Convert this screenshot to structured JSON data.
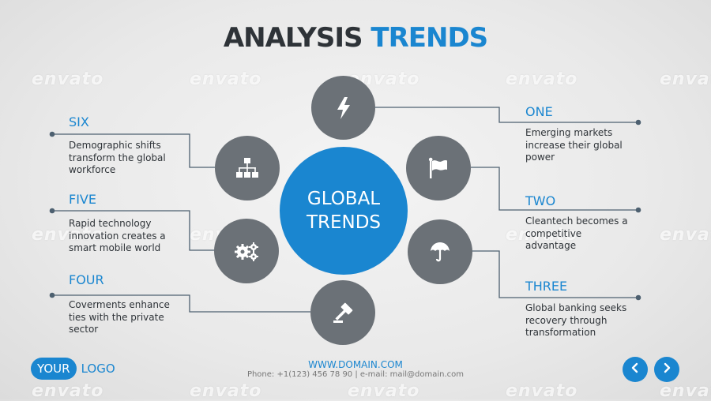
{
  "watermark": {
    "text": "envato"
  },
  "title": {
    "part1": "ANALYSIS ",
    "part2": "TRENDS"
  },
  "center": {
    "line1": "GLOBAL",
    "line2": "TRENDS"
  },
  "trends": {
    "one": {
      "label": "ONE",
      "text": "Emerging markets\nincrease their global\npower"
    },
    "two": {
      "label": "TWO",
      "text": "Cleantech becomes a\ncompetitive\nadvantage"
    },
    "three": {
      "label": "THREE",
      "text": "Global banking seeks\nrecovery through\ntransformation"
    },
    "four": {
      "label": "FOUR",
      "text": "Coverments enhance\nties with the private\nsector"
    },
    "five": {
      "label": "FIVE",
      "text": "Rapid technology\ninnovation creates a\nsmart mobile world"
    },
    "six": {
      "label": "SIX",
      "text": "Demographic shifts\ntransform the global\nworkforce"
    }
  },
  "footer": {
    "url": "WWW.DOMAIN.COM",
    "contact": "Phone: +1(123) 456 78 90 | e-mail: mail@domain.com"
  },
  "logo": {
    "your": "YOUR",
    "logo": "LOGO"
  },
  "icons": {
    "one": "lightning-icon",
    "two": "flag-icon",
    "three": "umbrella-icon",
    "four": "gavel-icon",
    "five": "gears-icon",
    "six": "org-chart-icon"
  },
  "colors": {
    "accent": "#1a86d0",
    "dark": "#2e3338",
    "icon_circle": "#6b7177"
  }
}
